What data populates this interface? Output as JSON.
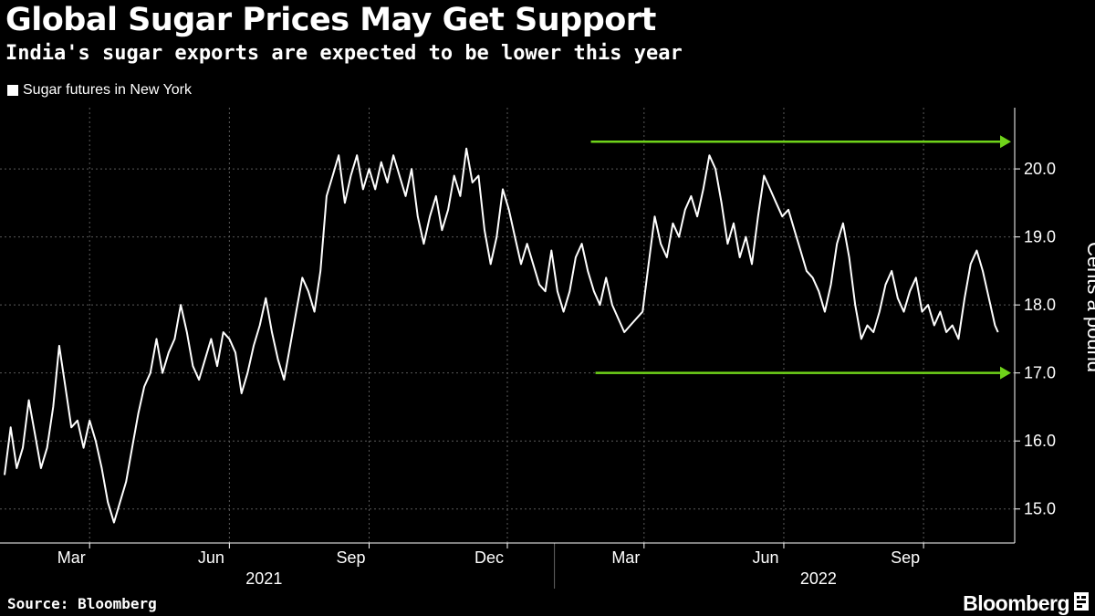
{
  "header": {
    "title": "Global Sugar Prices May Get Support",
    "subtitle": "India's sugar exports are expected to be lower this year"
  },
  "legend": {
    "series_label": "Sugar futures in New York"
  },
  "footer": {
    "source": "Source: Bloomberg",
    "brand": "Bloomberg"
  },
  "colors": {
    "background": "#000000",
    "line": "#ffffff",
    "arrow": "#6fd31a",
    "grid": "#5a5a5a"
  },
  "chart_data": {
    "type": "line",
    "title": "Global Sugar Prices May Get Support",
    "subtitle": "India's sugar exports are expected to be lower this year",
    "ylabel": "Cents a pound",
    "ylim": [
      14.5,
      20.9
    ],
    "xlim": [
      "2021-01-01",
      "2022-10-31"
    ],
    "y_ticks": [
      15.0,
      16.0,
      17.0,
      18.0,
      19.0,
      20.0
    ],
    "y_tick_labels": [
      "15.0",
      "16.0",
      "17.0",
      "18.0",
      "19.0",
      "20.0"
    ],
    "x_ticks": [
      {
        "date": "2021-03-01",
        "label": "Mar"
      },
      {
        "date": "2021-06-01",
        "label": "Jun"
      },
      {
        "date": "2021-09-01",
        "label": "Sep"
      },
      {
        "date": "2021-12-01",
        "label": "Dec"
      },
      {
        "date": "2022-03-01",
        "label": "Mar"
      },
      {
        "date": "2022-06-01",
        "label": "Jun"
      },
      {
        "date": "2022-09-01",
        "label": "Sep"
      }
    ],
    "year_labels": [
      {
        "date": "2021-07-01",
        "label": "2021"
      },
      {
        "date": "2022-07-01",
        "label": "2022"
      }
    ],
    "grid": true,
    "legend_position": "top-left",
    "annotations": [
      {
        "type": "arrow",
        "from": [
          "2022-01-25",
          20.4
        ],
        "to": [
          "2022-10-31",
          20.4
        ],
        "color": "#6fd31a"
      },
      {
        "type": "arrow",
        "from": [
          "2022-01-28",
          17.0
        ],
        "to": [
          "2022-10-31",
          17.0
        ],
        "color": "#6fd31a"
      }
    ],
    "series": [
      {
        "name": "Sugar futures in New York",
        "points": [
          [
            "2021-01-04",
            15.5
          ],
          [
            "2021-01-08",
            16.2
          ],
          [
            "2021-01-12",
            15.6
          ],
          [
            "2021-01-16",
            15.9
          ],
          [
            "2021-01-20",
            16.6
          ],
          [
            "2021-01-24",
            16.1
          ],
          [
            "2021-01-28",
            15.6
          ],
          [
            "2021-02-01",
            15.9
          ],
          [
            "2021-02-05",
            16.5
          ],
          [
            "2021-02-09",
            17.4
          ],
          [
            "2021-02-13",
            16.8
          ],
          [
            "2021-02-17",
            16.2
          ],
          [
            "2021-02-21",
            16.3
          ],
          [
            "2021-02-25",
            15.9
          ],
          [
            "2021-03-01",
            16.3
          ],
          [
            "2021-03-05",
            16.0
          ],
          [
            "2021-03-09",
            15.6
          ],
          [
            "2021-03-13",
            15.1
          ],
          [
            "2021-03-17",
            14.8
          ],
          [
            "2021-03-21",
            15.1
          ],
          [
            "2021-03-25",
            15.4
          ],
          [
            "2021-03-29",
            15.9
          ],
          [
            "2021-04-02",
            16.4
          ],
          [
            "2021-04-06",
            16.8
          ],
          [
            "2021-04-10",
            17.0
          ],
          [
            "2021-04-14",
            17.5
          ],
          [
            "2021-04-18",
            17.0
          ],
          [
            "2021-04-22",
            17.3
          ],
          [
            "2021-04-26",
            17.5
          ],
          [
            "2021-04-30",
            18.0
          ],
          [
            "2021-05-04",
            17.6
          ],
          [
            "2021-05-08",
            17.1
          ],
          [
            "2021-05-12",
            16.9
          ],
          [
            "2021-05-16",
            17.2
          ],
          [
            "2021-05-20",
            17.5
          ],
          [
            "2021-05-24",
            17.1
          ],
          [
            "2021-05-28",
            17.6
          ],
          [
            "2021-06-01",
            17.5
          ],
          [
            "2021-06-05",
            17.3
          ],
          [
            "2021-06-09",
            16.7
          ],
          [
            "2021-06-13",
            17.0
          ],
          [
            "2021-06-17",
            17.4
          ],
          [
            "2021-06-21",
            17.7
          ],
          [
            "2021-06-25",
            18.1
          ],
          [
            "2021-06-29",
            17.6
          ],
          [
            "2021-07-03",
            17.2
          ],
          [
            "2021-07-07",
            16.9
          ],
          [
            "2021-07-11",
            17.4
          ],
          [
            "2021-07-15",
            17.9
          ],
          [
            "2021-07-19",
            18.4
          ],
          [
            "2021-07-23",
            18.2
          ],
          [
            "2021-07-27",
            17.9
          ],
          [
            "2021-07-31",
            18.5
          ],
          [
            "2021-08-04",
            19.6
          ],
          [
            "2021-08-08",
            19.9
          ],
          [
            "2021-08-12",
            20.2
          ],
          [
            "2021-08-16",
            19.5
          ],
          [
            "2021-08-20",
            19.9
          ],
          [
            "2021-08-24",
            20.2
          ],
          [
            "2021-08-28",
            19.7
          ],
          [
            "2021-09-01",
            20.0
          ],
          [
            "2021-09-05",
            19.7
          ],
          [
            "2021-09-09",
            20.1
          ],
          [
            "2021-09-13",
            19.8
          ],
          [
            "2021-09-17",
            20.2
          ],
          [
            "2021-09-21",
            19.9
          ],
          [
            "2021-09-25",
            19.6
          ],
          [
            "2021-09-29",
            20.0
          ],
          [
            "2021-10-03",
            19.3
          ],
          [
            "2021-10-07",
            18.9
          ],
          [
            "2021-10-11",
            19.3
          ],
          [
            "2021-10-15",
            19.6
          ],
          [
            "2021-10-19",
            19.1
          ],
          [
            "2021-10-23",
            19.4
          ],
          [
            "2021-10-27",
            19.9
          ],
          [
            "2021-10-31",
            19.6
          ],
          [
            "2021-11-04",
            20.3
          ],
          [
            "2021-11-08",
            19.8
          ],
          [
            "2021-11-12",
            19.9
          ],
          [
            "2021-11-16",
            19.1
          ],
          [
            "2021-11-20",
            18.6
          ],
          [
            "2021-11-24",
            19.0
          ],
          [
            "2021-11-28",
            19.7
          ],
          [
            "2021-12-02",
            19.4
          ],
          [
            "2021-12-06",
            19.0
          ],
          [
            "2021-12-10",
            18.6
          ],
          [
            "2021-12-14",
            18.9
          ],
          [
            "2021-12-18",
            18.6
          ],
          [
            "2021-12-22",
            18.3
          ],
          [
            "2021-12-26",
            18.2
          ],
          [
            "2021-12-30",
            18.8
          ],
          [
            "2022-01-03",
            18.2
          ],
          [
            "2022-01-07",
            17.9
          ],
          [
            "2022-01-11",
            18.2
          ],
          [
            "2022-01-15",
            18.7
          ],
          [
            "2022-01-19",
            18.9
          ],
          [
            "2022-01-23",
            18.5
          ],
          [
            "2022-01-27",
            18.2
          ],
          [
            "2022-01-31",
            18.0
          ],
          [
            "2022-02-04",
            18.4
          ],
          [
            "2022-02-08",
            18.0
          ],
          [
            "2022-02-12",
            17.8
          ],
          [
            "2022-02-16",
            17.6
          ],
          [
            "2022-02-20",
            17.7
          ],
          [
            "2022-02-24",
            17.8
          ],
          [
            "2022-02-28",
            17.9
          ],
          [
            "2022-03-04",
            18.6
          ],
          [
            "2022-03-08",
            19.3
          ],
          [
            "2022-03-12",
            18.9
          ],
          [
            "2022-03-16",
            18.7
          ],
          [
            "2022-03-20",
            19.2
          ],
          [
            "2022-03-24",
            19.0
          ],
          [
            "2022-03-28",
            19.4
          ],
          [
            "2022-04-01",
            19.6
          ],
          [
            "2022-04-05",
            19.3
          ],
          [
            "2022-04-09",
            19.7
          ],
          [
            "2022-04-13",
            20.2
          ],
          [
            "2022-04-17",
            20.0
          ],
          [
            "2022-04-21",
            19.5
          ],
          [
            "2022-04-25",
            18.9
          ],
          [
            "2022-04-29",
            19.2
          ],
          [
            "2022-05-03",
            18.7
          ],
          [
            "2022-05-07",
            19.0
          ],
          [
            "2022-05-11",
            18.6
          ],
          [
            "2022-05-15",
            19.3
          ],
          [
            "2022-05-19",
            19.9
          ],
          [
            "2022-05-23",
            19.7
          ],
          [
            "2022-05-27",
            19.5
          ],
          [
            "2022-05-31",
            19.3
          ],
          [
            "2022-06-04",
            19.4
          ],
          [
            "2022-06-08",
            19.1
          ],
          [
            "2022-06-12",
            18.8
          ],
          [
            "2022-06-16",
            18.5
          ],
          [
            "2022-06-20",
            18.4
          ],
          [
            "2022-06-24",
            18.2
          ],
          [
            "2022-06-28",
            17.9
          ],
          [
            "2022-07-02",
            18.3
          ],
          [
            "2022-07-06",
            18.9
          ],
          [
            "2022-07-10",
            19.2
          ],
          [
            "2022-07-14",
            18.7
          ],
          [
            "2022-07-18",
            18.0
          ],
          [
            "2022-07-22",
            17.5
          ],
          [
            "2022-07-26",
            17.7
          ],
          [
            "2022-07-30",
            17.6
          ],
          [
            "2022-08-03",
            17.9
          ],
          [
            "2022-08-07",
            18.3
          ],
          [
            "2022-08-11",
            18.5
          ],
          [
            "2022-08-15",
            18.1
          ],
          [
            "2022-08-19",
            17.9
          ],
          [
            "2022-08-23",
            18.2
          ],
          [
            "2022-08-27",
            18.4
          ],
          [
            "2022-08-31",
            17.9
          ],
          [
            "2022-09-04",
            18.0
          ],
          [
            "2022-09-08",
            17.7
          ],
          [
            "2022-09-12",
            17.9
          ],
          [
            "2022-09-16",
            17.6
          ],
          [
            "2022-09-20",
            17.7
          ],
          [
            "2022-09-24",
            17.5
          ],
          [
            "2022-09-28",
            18.1
          ],
          [
            "2022-10-02",
            18.6
          ],
          [
            "2022-10-06",
            18.8
          ],
          [
            "2022-10-10",
            18.5
          ],
          [
            "2022-10-14",
            18.1
          ],
          [
            "2022-10-18",
            17.7
          ],
          [
            "2022-10-20",
            17.6
          ]
        ]
      }
    ]
  }
}
